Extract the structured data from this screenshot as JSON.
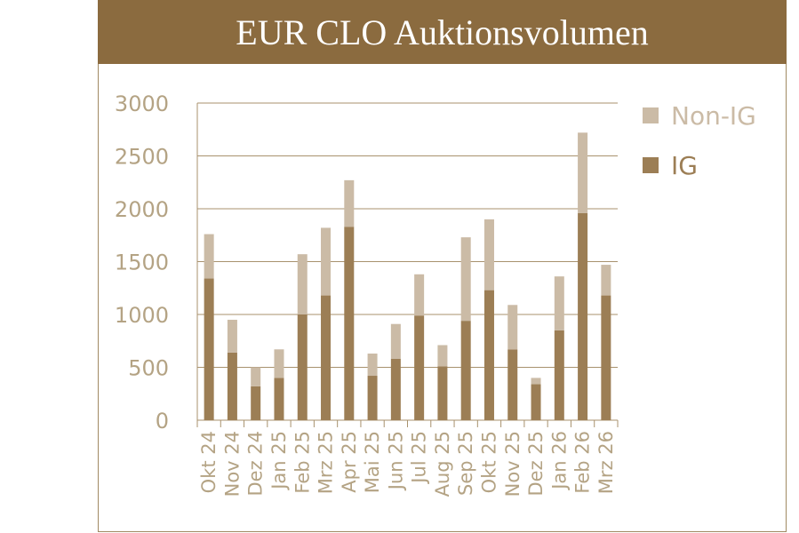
{
  "chart_data": {
    "type": "bar",
    "stacked": true,
    "title": "EUR CLO Auktionsvolumen",
    "categories": [
      "Okt 24",
      "Nov 24",
      "Dez 24",
      "Jan 25",
      "Feb 25",
      "Mrz 25",
      "Apr 25",
      "Mai 25",
      "Jun 25",
      "Jul 25",
      "Aug 25",
      "Sep 25",
      "Okt 25",
      "Nov 25",
      "Dez 25",
      "Jan 26",
      "Feb 26",
      "Mrz 26"
    ],
    "series": [
      {
        "name": "IG",
        "color": "#9c7e55",
        "values": [
          1340,
          640,
          320,
          400,
          1000,
          1180,
          1830,
          420,
          580,
          990,
          510,
          940,
          1230,
          670,
          340,
          850,
          1960,
          1180
        ]
      },
      {
        "name": "Non-IG",
        "color": "#cbbba6",
        "values": [
          420,
          310,
          180,
          270,
          570,
          640,
          440,
          210,
          330,
          390,
          200,
          790,
          670,
          420,
          60,
          510,
          760,
          290
        ]
      }
    ],
    "legend_order": [
      "Non-IG",
      "IG"
    ],
    "legend_position": "right",
    "ylim": [
      0,
      3000
    ],
    "yticks": [
      0,
      500,
      1000,
      1500,
      2000,
      2500,
      3000
    ],
    "grid": true,
    "xlabel": "",
    "ylabel": ""
  }
}
